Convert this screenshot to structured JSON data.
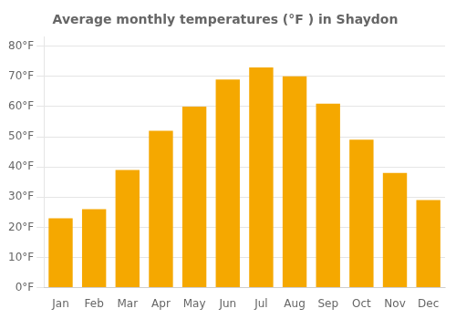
{
  "chart_data": {
    "type": "bar",
    "title": "Average monthly temperatures (°F ) in Shaydon",
    "categories": [
      "Jan",
      "Feb",
      "Mar",
      "Apr",
      "May",
      "Jun",
      "Jul",
      "Aug",
      "Sep",
      "Oct",
      "Nov",
      "Dec"
    ],
    "values": [
      23,
      26,
      39,
      52,
      60,
      69,
      73,
      70,
      61,
      49,
      38,
      29
    ],
    "color": "#F5A800",
    "ylim": [
      0,
      83
    ],
    "yticks": [
      {
        "value": 0,
        "label": "0°F"
      },
      {
        "value": 10,
        "label": "10°F"
      },
      {
        "value": 20,
        "label": "20°F"
      },
      {
        "value": 30,
        "label": "30°F"
      },
      {
        "value": 40,
        "label": "40°F"
      },
      {
        "value": 50,
        "label": "50°F"
      },
      {
        "value": 60,
        "label": "60°F"
      },
      {
        "value": 70,
        "label": "70°F"
      },
      {
        "value": 80,
        "label": "80°F"
      }
    ],
    "grid": true
  }
}
